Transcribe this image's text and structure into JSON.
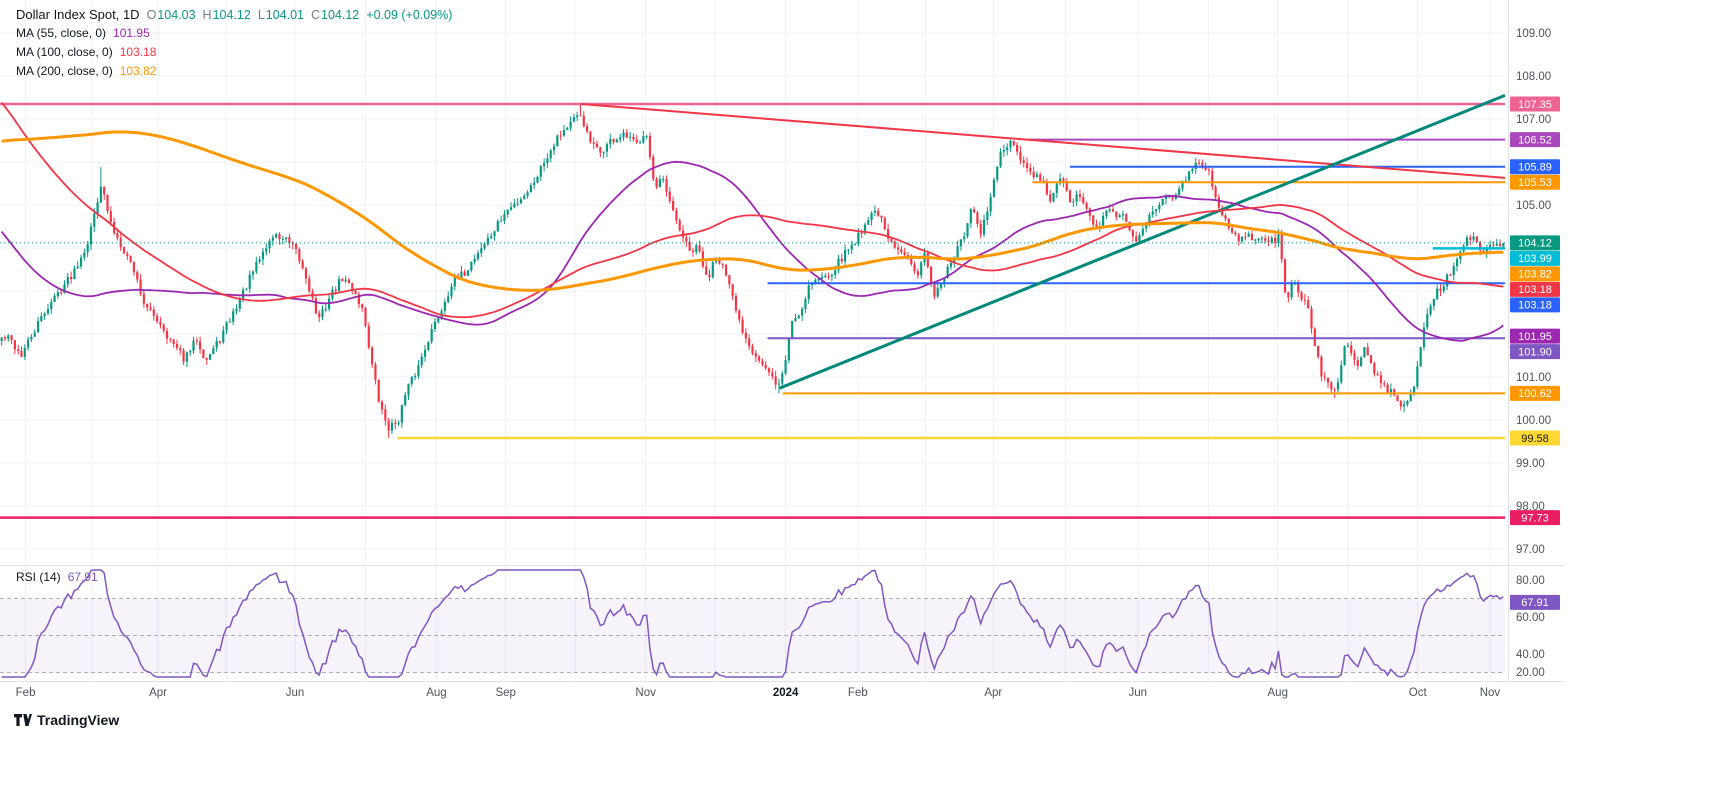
{
  "legend": {
    "title": "Dollar Index Spot, 1D",
    "ohlc": [
      {
        "k": "O",
        "v": "104.03"
      },
      {
        "k": "H",
        "v": "104.12"
      },
      {
        "k": "L",
        "v": "104.01"
      },
      {
        "k": "C",
        "v": "104.12"
      }
    ],
    "change": "+0.09 (+0.09%)",
    "indicators": [
      {
        "label": "MA (55, close, 0)",
        "value": "101.95",
        "color": "#9c27b0"
      },
      {
        "label": "MA (100, close, 0)",
        "value": "103.18",
        "color": "#f23645"
      },
      {
        "label": "MA (200, close, 0)",
        "value": "103.82",
        "color": "#ff9800"
      }
    ],
    "rsi_row": {
      "label": "RSI (14)",
      "value": "67.91",
      "color": "#7e57c2"
    }
  },
  "footer": {
    "logo_text": "TradingView"
  },
  "colors": {
    "background": "#ffffff",
    "grid": "#eff2f8",
    "axis_text": "#50535e",
    "legend_text": "#131722",
    "up": "#089981",
    "down": "#f23645",
    "divider": "#e0e3eb"
  },
  "chart_data": {
    "type": "candlestick",
    "title": "Dollar Index Spot",
    "timeframe": "1D",
    "last_candle": {
      "open": 104.03,
      "high": 104.12,
      "low": 104.01,
      "close": 104.12
    },
    "change_text": "+0.09 (+0.09%)",
    "candle_count": 455,
    "up_color": "#089981",
    "down_color": "#f23645",
    "y_axis": {
      "gridline_prices": [
        97,
        98,
        99,
        100,
        101,
        102,
        103,
        104,
        105,
        106,
        107,
        108,
        109
      ],
      "visible_labels": [
        109,
        108,
        107,
        105,
        101,
        100,
        99,
        98,
        97
      ]
    },
    "x_axis": {
      "labels": [
        {
          "text": "Feb",
          "t": 0.017
        },
        {
          "text": "Apr",
          "t": 0.105
        },
        {
          "text": "Jun",
          "t": 0.196
        },
        {
          "text": "Aug",
          "t": 0.29
        },
        {
          "text": "Sep",
          "t": 0.336
        },
        {
          "text": "Nov",
          "t": 0.429
        },
        {
          "text": "2024",
          "t": 0.522
        },
        {
          "text": "Feb",
          "t": 0.57
        },
        {
          "text": "Apr",
          "t": 0.66
        },
        {
          "text": "Jun",
          "t": 0.756
        },
        {
          "text": "Aug",
          "t": 0.849
        },
        {
          "text": "Oct",
          "t": 0.942
        },
        {
          "text": "Nov",
          "t": 0.99
        }
      ],
      "gridlines_t": [
        0.017,
        0.061,
        0.105,
        0.15,
        0.196,
        0.243,
        0.29,
        0.336,
        0.382,
        0.429,
        0.475,
        0.522,
        0.57,
        0.615,
        0.66,
        0.708,
        0.756,
        0.803,
        0.849,
        0.896,
        0.942,
        0.99
      ]
    },
    "price_waypoints": [
      [
        0.005,
        101.9
      ],
      [
        0.013,
        101.5
      ],
      [
        0.03,
        102.6
      ],
      [
        0.047,
        103.4
      ],
      [
        0.058,
        104.2
      ],
      [
        0.066,
        105.5
      ],
      [
        0.073,
        104.5
      ],
      [
        0.081,
        104.0
      ],
      [
        0.088,
        103.5
      ],
      [
        0.096,
        102.6
      ],
      [
        0.105,
        102.3
      ],
      [
        0.113,
        101.8
      ],
      [
        0.122,
        101.4
      ],
      [
        0.13,
        101.9
      ],
      [
        0.136,
        101.4
      ],
      [
        0.144,
        101.8
      ],
      [
        0.153,
        102.4
      ],
      [
        0.164,
        103.2
      ],
      [
        0.174,
        103.9
      ],
      [
        0.181,
        104.3
      ],
      [
        0.189,
        104.2
      ],
      [
        0.196,
        103.9
      ],
      [
        0.203,
        103.3
      ],
      [
        0.211,
        102.3
      ],
      [
        0.219,
        102.9
      ],
      [
        0.227,
        103.3
      ],
      [
        0.235,
        103.0
      ],
      [
        0.241,
        102.5
      ],
      [
        0.247,
        101.2
      ],
      [
        0.252,
        100.3
      ],
      [
        0.258,
        99.8
      ],
      [
        0.264,
        100.0
      ],
      [
        0.27,
        100.7
      ],
      [
        0.277,
        101.2
      ],
      [
        0.284,
        101.9
      ],
      [
        0.292,
        102.5
      ],
      [
        0.3,
        103.2
      ],
      [
        0.308,
        103.4
      ],
      [
        0.317,
        103.9
      ],
      [
        0.326,
        104.3
      ],
      [
        0.335,
        104.8
      ],
      [
        0.344,
        105.1
      ],
      [
        0.352,
        105.4
      ],
      [
        0.361,
        106.0
      ],
      [
        0.37,
        106.6
      ],
      [
        0.379,
        106.9
      ],
      [
        0.386,
        107.1
      ],
      [
        0.391,
        106.5
      ],
      [
        0.398,
        106.2
      ],
      [
        0.406,
        106.5
      ],
      [
        0.415,
        106.6
      ],
      [
        0.423,
        106.4
      ],
      [
        0.429,
        106.8
      ],
      [
        0.435,
        105.3
      ],
      [
        0.44,
        105.6
      ],
      [
        0.446,
        104.9
      ],
      [
        0.452,
        104.4
      ],
      [
        0.458,
        103.9
      ],
      [
        0.464,
        104.0
      ],
      [
        0.47,
        103.2
      ],
      [
        0.475,
        103.9
      ],
      [
        0.48,
        103.6
      ],
      [
        0.486,
        102.9
      ],
      [
        0.492,
        102.2
      ],
      [
        0.499,
        101.7
      ],
      [
        0.506,
        101.3
      ],
      [
        0.512,
        101.0
      ],
      [
        0.518,
        100.8
      ],
      [
        0.522,
        101.4
      ],
      [
        0.526,
        102.3
      ],
      [
        0.532,
        102.5
      ],
      [
        0.538,
        103.2
      ],
      [
        0.546,
        103.3
      ],
      [
        0.554,
        103.5
      ],
      [
        0.562,
        103.9
      ],
      [
        0.569,
        104.2
      ],
      [
        0.577,
        104.7
      ],
      [
        0.583,
        104.9
      ],
      [
        0.59,
        104.2
      ],
      [
        0.597,
        103.9
      ],
      [
        0.603,
        103.9
      ],
      [
        0.61,
        103.4
      ],
      [
        0.615,
        103.9
      ],
      [
        0.62,
        102.9
      ],
      [
        0.627,
        103.3
      ],
      [
        0.633,
        103.7
      ],
      [
        0.64,
        104.2
      ],
      [
        0.646,
        104.9
      ],
      [
        0.652,
        104.3
      ],
      [
        0.658,
        105.1
      ],
      [
        0.665,
        106.2
      ],
      [
        0.672,
        106.4
      ],
      [
        0.678,
        106.1
      ],
      [
        0.685,
        105.7
      ],
      [
        0.692,
        105.6
      ],
      [
        0.698,
        105.1
      ],
      [
        0.705,
        105.6
      ],
      [
        0.712,
        105.1
      ],
      [
        0.719,
        105.2
      ],
      [
        0.728,
        104.4
      ],
      [
        0.738,
        104.9
      ],
      [
        0.747,
        104.7
      ],
      [
        0.756,
        104.1
      ],
      [
        0.765,
        104.9
      ],
      [
        0.779,
        105.2
      ],
      [
        0.795,
        105.9
      ],
      [
        0.803,
        105.9
      ],
      [
        0.809,
        105.1
      ],
      [
        0.818,
        104.4
      ],
      [
        0.825,
        104.2
      ],
      [
        0.837,
        104.3
      ],
      [
        0.848,
        104.1
      ],
      [
        0.851,
        104.3
      ],
      [
        0.855,
        102.8
      ],
      [
        0.86,
        103.2
      ],
      [
        0.87,
        102.6
      ],
      [
        0.879,
        101.0
      ],
      [
        0.888,
        100.6
      ],
      [
        0.894,
        101.7
      ],
      [
        0.898,
        101.7
      ],
      [
        0.902,
        101.2
      ],
      [
        0.907,
        101.7
      ],
      [
        0.917,
        100.9
      ],
      [
        0.932,
        100.4
      ],
      [
        0.937,
        100.4
      ],
      [
        0.942,
        101.0
      ],
      [
        0.947,
        102.2
      ],
      [
        0.954,
        102.9
      ],
      [
        0.963,
        103.3
      ],
      [
        0.97,
        103.8
      ],
      [
        0.977,
        104.3
      ],
      [
        0.982,
        104.1
      ],
      [
        0.986,
        103.9
      ],
      [
        0.99,
        104.0
      ],
      [
        0.995,
        104.1
      ]
    ],
    "prehistory_waypoints": [
      [
        -200,
        100.2
      ],
      [
        -180,
        102.0
      ],
      [
        -160,
        104.5
      ],
      [
        -140,
        106.8
      ],
      [
        -120,
        108.8
      ],
      [
        -105,
        110.2
      ],
      [
        -95,
        112.8
      ],
      [
        -85,
        112.0
      ],
      [
        -75,
        110.8
      ],
      [
        -65,
        110.9
      ],
      [
        -55,
        107.5
      ],
      [
        -45,
        106.3
      ],
      [
        -35,
        104.8
      ],
      [
        -25,
        104.2
      ],
      [
        -15,
        103.2
      ],
      [
        -5,
        102.2
      ],
      [
        0,
        101.9
      ]
    ],
    "key_extremes": [
      {
        "t": 0.066,
        "high": 105.88
      },
      {
        "t": 0.258,
        "low": 99.58
      },
      {
        "t": 0.386,
        "high": 107.35
      },
      {
        "t": 0.518,
        "low": 100.62
      },
      {
        "t": 0.672,
        "high": 106.52
      },
      {
        "t": 0.888,
        "low": 100.51
      },
      {
        "t": 0.935,
        "low": 100.18
      }
    ],
    "moving_averages": [
      {
        "period": 55,
        "color": "#9c27b0",
        "current": 101.95
      },
      {
        "period": 100,
        "color": "#f23645",
        "current": 103.18
      },
      {
        "period": 200,
        "color": "#ff9800",
        "current": 103.82
      }
    ],
    "levels": [
      {
        "price": 107.35,
        "color": "#f06292",
        "from_t": 0,
        "width": 2.5
      },
      {
        "price": 106.52,
        "color": "#ab47bc",
        "from_t": 0.683,
        "width": 2
      },
      {
        "price": 105.89,
        "color": "#2962ff",
        "from_t": 0.711,
        "width": 2
      },
      {
        "price": 105.53,
        "color": "#ff9800",
        "from_t": 0.686,
        "width": 2
      },
      {
        "price": 103.99,
        "color": "#00bcd4",
        "from_t": 0.952,
        "width": 2.5
      },
      {
        "price": 103.18,
        "color": "#2962ff",
        "from_t": 0.51,
        "width": 2
      },
      {
        "price": 101.9,
        "color": "#7e57c2",
        "from_t": 0.51,
        "width": 2
      },
      {
        "price": 100.62,
        "color": "#ff9800",
        "from_t": 0.52,
        "width": 2
      },
      {
        "price": 99.58,
        "color": "#fdd835",
        "from_t": 0.264,
        "width": 2.5,
        "label_text": "#131722"
      },
      {
        "price": 97.73,
        "color": "#e91e63",
        "from_t": 0,
        "width": 2.5
      }
    ],
    "last_price_line": {
      "price": 104.12,
      "color": "#089981"
    },
    "trendlines": [
      {
        "t1": 0.386,
        "p1": 107.35,
        "t2": 1.0,
        "p2": 105.63,
        "color": "#f23645",
        "width": 2,
        "name": "descending-trendline"
      },
      {
        "t1": 0.518,
        "p1": 100.74,
        "t2": 1.0,
        "p2": 107.55,
        "color": "#00897b",
        "width": 3,
        "name": "ascending-trendline"
      }
    ],
    "rsi": {
      "period": 14,
      "current": 67.91,
      "color": "#7e57c2",
      "band": [
        30,
        70
      ],
      "mid": 50,
      "ticks": [
        80,
        60,
        40,
        20
      ]
    }
  }
}
